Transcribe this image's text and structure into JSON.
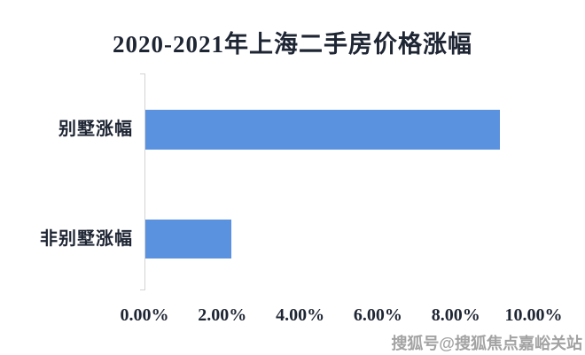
{
  "chart_data": {
    "type": "bar",
    "orientation": "horizontal",
    "title": "2020-2021年上海二手房价格涨幅",
    "categories": [
      "别墅涨幅",
      "非别墅涨幅"
    ],
    "values": [
      9.1,
      2.2
    ],
    "value_unit": "percent",
    "x_axis": {
      "min": 0,
      "max": 10,
      "ticks": [
        "0.00%",
        "2.00%",
        "4.00%",
        "6.00%",
        "8.00%",
        "10.00%"
      ]
    },
    "ylabel": "",
    "xlabel": "",
    "grid": false,
    "legend": false,
    "bar_color": "#5b92e0"
  },
  "colors": {
    "background": "#ffffff",
    "text": "#1e2533",
    "axis_line": "#d4d4d4",
    "bar": "#5b92e0",
    "watermark": "#a3a3a3"
  },
  "watermark": {
    "text": "搜狐号@搜狐焦点嘉峪关站"
  }
}
